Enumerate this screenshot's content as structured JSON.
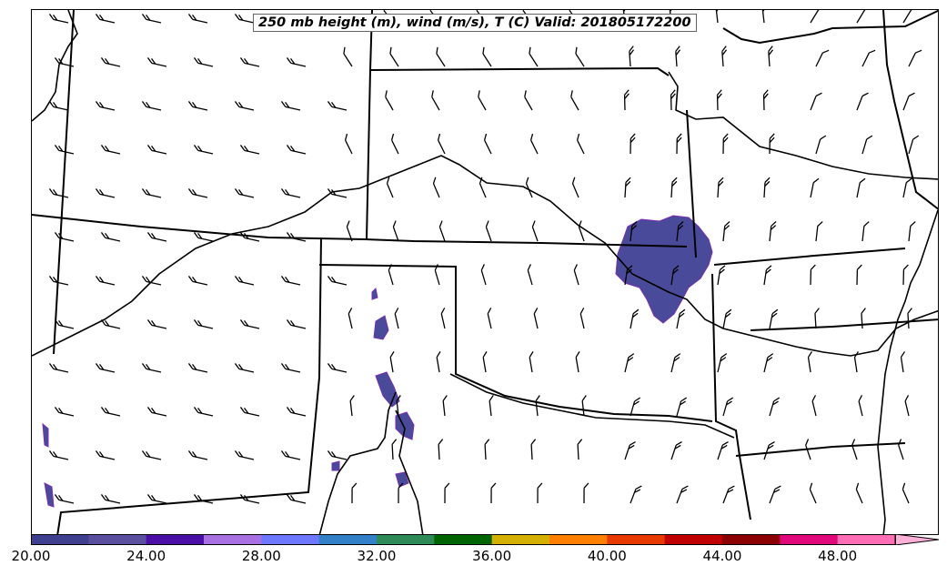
{
  "title": "250 mb height (m), wind (m/s), T (C) Valid: 201805172200",
  "colorbar": {
    "colors": [
      "#3f3f8f",
      "#5a4f9e",
      "#4b0fa8",
      "#a870e0",
      "#6e78ff",
      "#3280c8",
      "#2e8b57",
      "#006400",
      "#d4b000",
      "#ff8000",
      "#e83a00",
      "#c00000",
      "#8b0000",
      "#e0087a",
      "#ff6eb4",
      "#ffb0d8"
    ],
    "tick_labels": [
      "20.00",
      "24.00",
      "28.00",
      "32.00",
      "36.00",
      "40.00",
      "44.00",
      "48.00"
    ],
    "extend": "max"
  },
  "contour_color": "#4a4a9a",
  "wind_barb_color": "#000000",
  "boundary_color": "#000000"
}
